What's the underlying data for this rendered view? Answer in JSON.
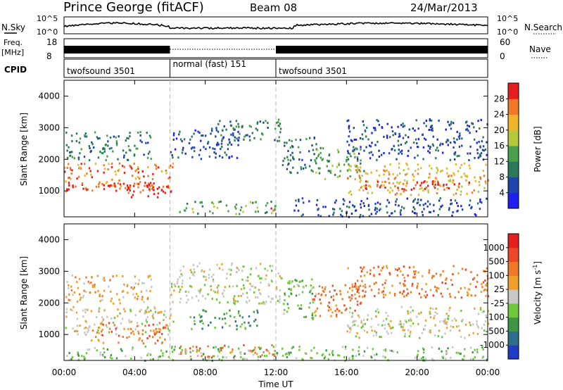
{
  "header": {
    "station": "Prince George (fitACF)",
    "beam": "Beam 08",
    "date": "24/Mar/2013"
  },
  "top_panels": {
    "nsky_label": "N.Sky",
    "nsky_ticks": [
      "10^5",
      "10^0"
    ],
    "nsearch_label": "N.Search",
    "freq_label": [
      "Freq.",
      "[MHz]"
    ],
    "freq_ticks": [
      "18",
      "8"
    ],
    "nave_ticks": [
      "60",
      "0"
    ],
    "nave_label": "Nave",
    "cpid_label": "CPID",
    "cpid_segments": [
      {
        "label": "twofsound 3501",
        "start": 0,
        "end": 6
      },
      {
        "label": "normal (fast) 151",
        "start": 6,
        "end": 12
      },
      {
        "label": "twofsound 3501",
        "start": 12,
        "end": 24
      }
    ]
  },
  "chart_data": [
    {
      "type": "heatmap",
      "title": "Power",
      "ylabel": "Slant Range [km]",
      "xlabel": "Time UT",
      "xlim": [
        0,
        24
      ],
      "ylim": [
        180,
        4500
      ],
      "yticks": [
        "1000",
        "2000",
        "3000",
        "4000"
      ],
      "xticks": [
        "00:00",
        "04:00",
        "08:00",
        "12:00",
        "16:00",
        "20:00",
        "00:00"
      ],
      "colorbar": {
        "label": "Power [dB]",
        "ticks": [
          "28",
          "24",
          "20",
          "16",
          "12",
          "8",
          "4"
        ],
        "colors": [
          "#1e1ef0",
          "#1e46aa",
          "#2a7a5a",
          "#4aa04a",
          "#b4c83c",
          "#f0b428",
          "#f07828",
          "#e61e1e"
        ]
      },
      "scatter_regions": [
        {
          "t0": 0.0,
          "t1": 6.2,
          "r0": 1000,
          "r1": 1900,
          "level": 6
        },
        {
          "t0": 0.0,
          "t1": 5.5,
          "r0": 1050,
          "r1": 1300,
          "level": 7
        },
        {
          "t0": 3.5,
          "t1": 6.0,
          "r0": 800,
          "r1": 1200,
          "level": 7
        },
        {
          "t0": 0.0,
          "t1": 5.0,
          "r0": 2000,
          "r1": 2900,
          "level": 2
        },
        {
          "t0": 6.0,
          "t1": 10.0,
          "r0": 2000,
          "r1": 3000,
          "level": 1
        },
        {
          "t0": 8.5,
          "t1": 12.3,
          "r0": 2600,
          "r1": 3300,
          "level": 2
        },
        {
          "t0": 6.5,
          "t1": 12.0,
          "r0": 300,
          "r1": 700,
          "level": 3
        },
        {
          "t0": 11.3,
          "t1": 12.0,
          "r0": 380,
          "r1": 520,
          "level": 7
        },
        {
          "t0": 12.3,
          "t1": 14.3,
          "r0": 1600,
          "r1": 2800,
          "level": 2
        },
        {
          "t0": 14.0,
          "t1": 17.0,
          "r0": 1400,
          "r1": 2400,
          "level": 3
        },
        {
          "t0": 16.0,
          "t1": 24.0,
          "r0": 900,
          "r1": 1900,
          "level": 5
        },
        {
          "t0": 17.0,
          "t1": 23.0,
          "r0": 1050,
          "r1": 1350,
          "level": 7
        },
        {
          "t0": 16.0,
          "t1": 24.0,
          "r0": 2000,
          "r1": 3300,
          "level": 1
        },
        {
          "t0": 13.0,
          "t1": 24.0,
          "r0": 200,
          "r1": 800,
          "level": 1
        }
      ]
    },
    {
      "type": "heatmap",
      "title": "Velocity",
      "ylabel": "Slant Range [km]",
      "xlabel": "Time UT",
      "xlim": [
        0,
        24
      ],
      "ylim": [
        180,
        4500
      ],
      "yticks": [
        "1000",
        "2000",
        "3000",
        "4000"
      ],
      "xticks": [
        "00:00",
        "04:00",
        "08:00",
        "12:00",
        "16:00",
        "20:00",
        "00:00"
      ],
      "colorbar": {
        "label": "Velocity [m s",
        "label_sup": "-1",
        "label_end": "]",
        "ticks": [
          "1000",
          "500",
          "100",
          "25",
          "-25",
          "-100",
          "-500",
          "-1000"
        ],
        "colors": [
          "#1e3cc8",
          "#2d6e8c",
          "#3c9646",
          "#6ec83c",
          "#c8c8c8",
          "#f0a028",
          "#f07828",
          "#f04628",
          "#e61e1e"
        ]
      },
      "scatter_regions": [
        {
          "t0": 0.0,
          "t1": 6.2,
          "r0": 1000,
          "r1": 1900,
          "level": 4
        },
        {
          "t0": 1.5,
          "t1": 6.0,
          "r0": 750,
          "r1": 1400,
          "level": 6
        },
        {
          "t0": 0.0,
          "t1": 5.0,
          "r0": 2000,
          "r1": 2900,
          "level": 5
        },
        {
          "t0": 6.0,
          "t1": 12.3,
          "r0": 2000,
          "r1": 3300,
          "level": 4
        },
        {
          "t0": 6.5,
          "t1": 12.0,
          "r0": 300,
          "r1": 700,
          "level": 6
        },
        {
          "t0": 7.0,
          "t1": 11.0,
          "r0": 1200,
          "r1": 1800,
          "level": 2
        },
        {
          "t0": 12.3,
          "t1": 14.3,
          "r0": 1500,
          "r1": 2800,
          "level": 3
        },
        {
          "t0": 14.0,
          "t1": 17.0,
          "r0": 1600,
          "r1": 2600,
          "level": 6
        },
        {
          "t0": 16.0,
          "t1": 24.0,
          "r0": 900,
          "r1": 1900,
          "level": 4
        },
        {
          "t0": 16.0,
          "t1": 24.0,
          "r0": 2200,
          "r1": 3200,
          "level": 6
        },
        {
          "t0": 0.0,
          "t1": 24.0,
          "r0": 200,
          "r1": 650,
          "level": 3
        }
      ]
    }
  ]
}
